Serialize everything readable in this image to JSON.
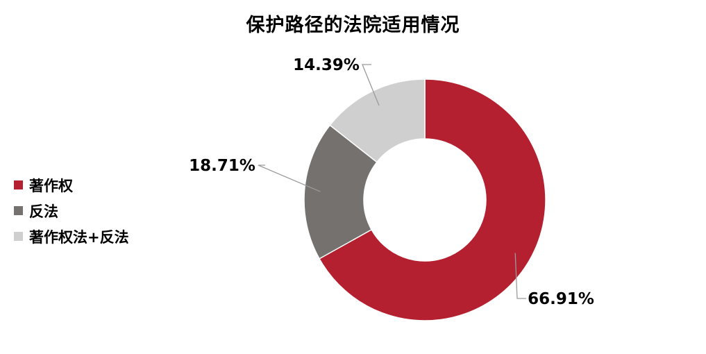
{
  "chart_data": {
    "type": "pie",
    "title": "保护路径的法院适用情况",
    "legend_position": "left",
    "slices": [
      {
        "name": "著作权",
        "value": 66.91,
        "label": "66.91%",
        "color": "#B4202F"
      },
      {
        "name": "反法",
        "value": 18.71,
        "label": "18.71%",
        "color": "#75716F"
      },
      {
        "name": "著作权法+反法",
        "value": 14.39,
        "label": "14.39%",
        "color": "#D0CFCF"
      }
    ]
  }
}
